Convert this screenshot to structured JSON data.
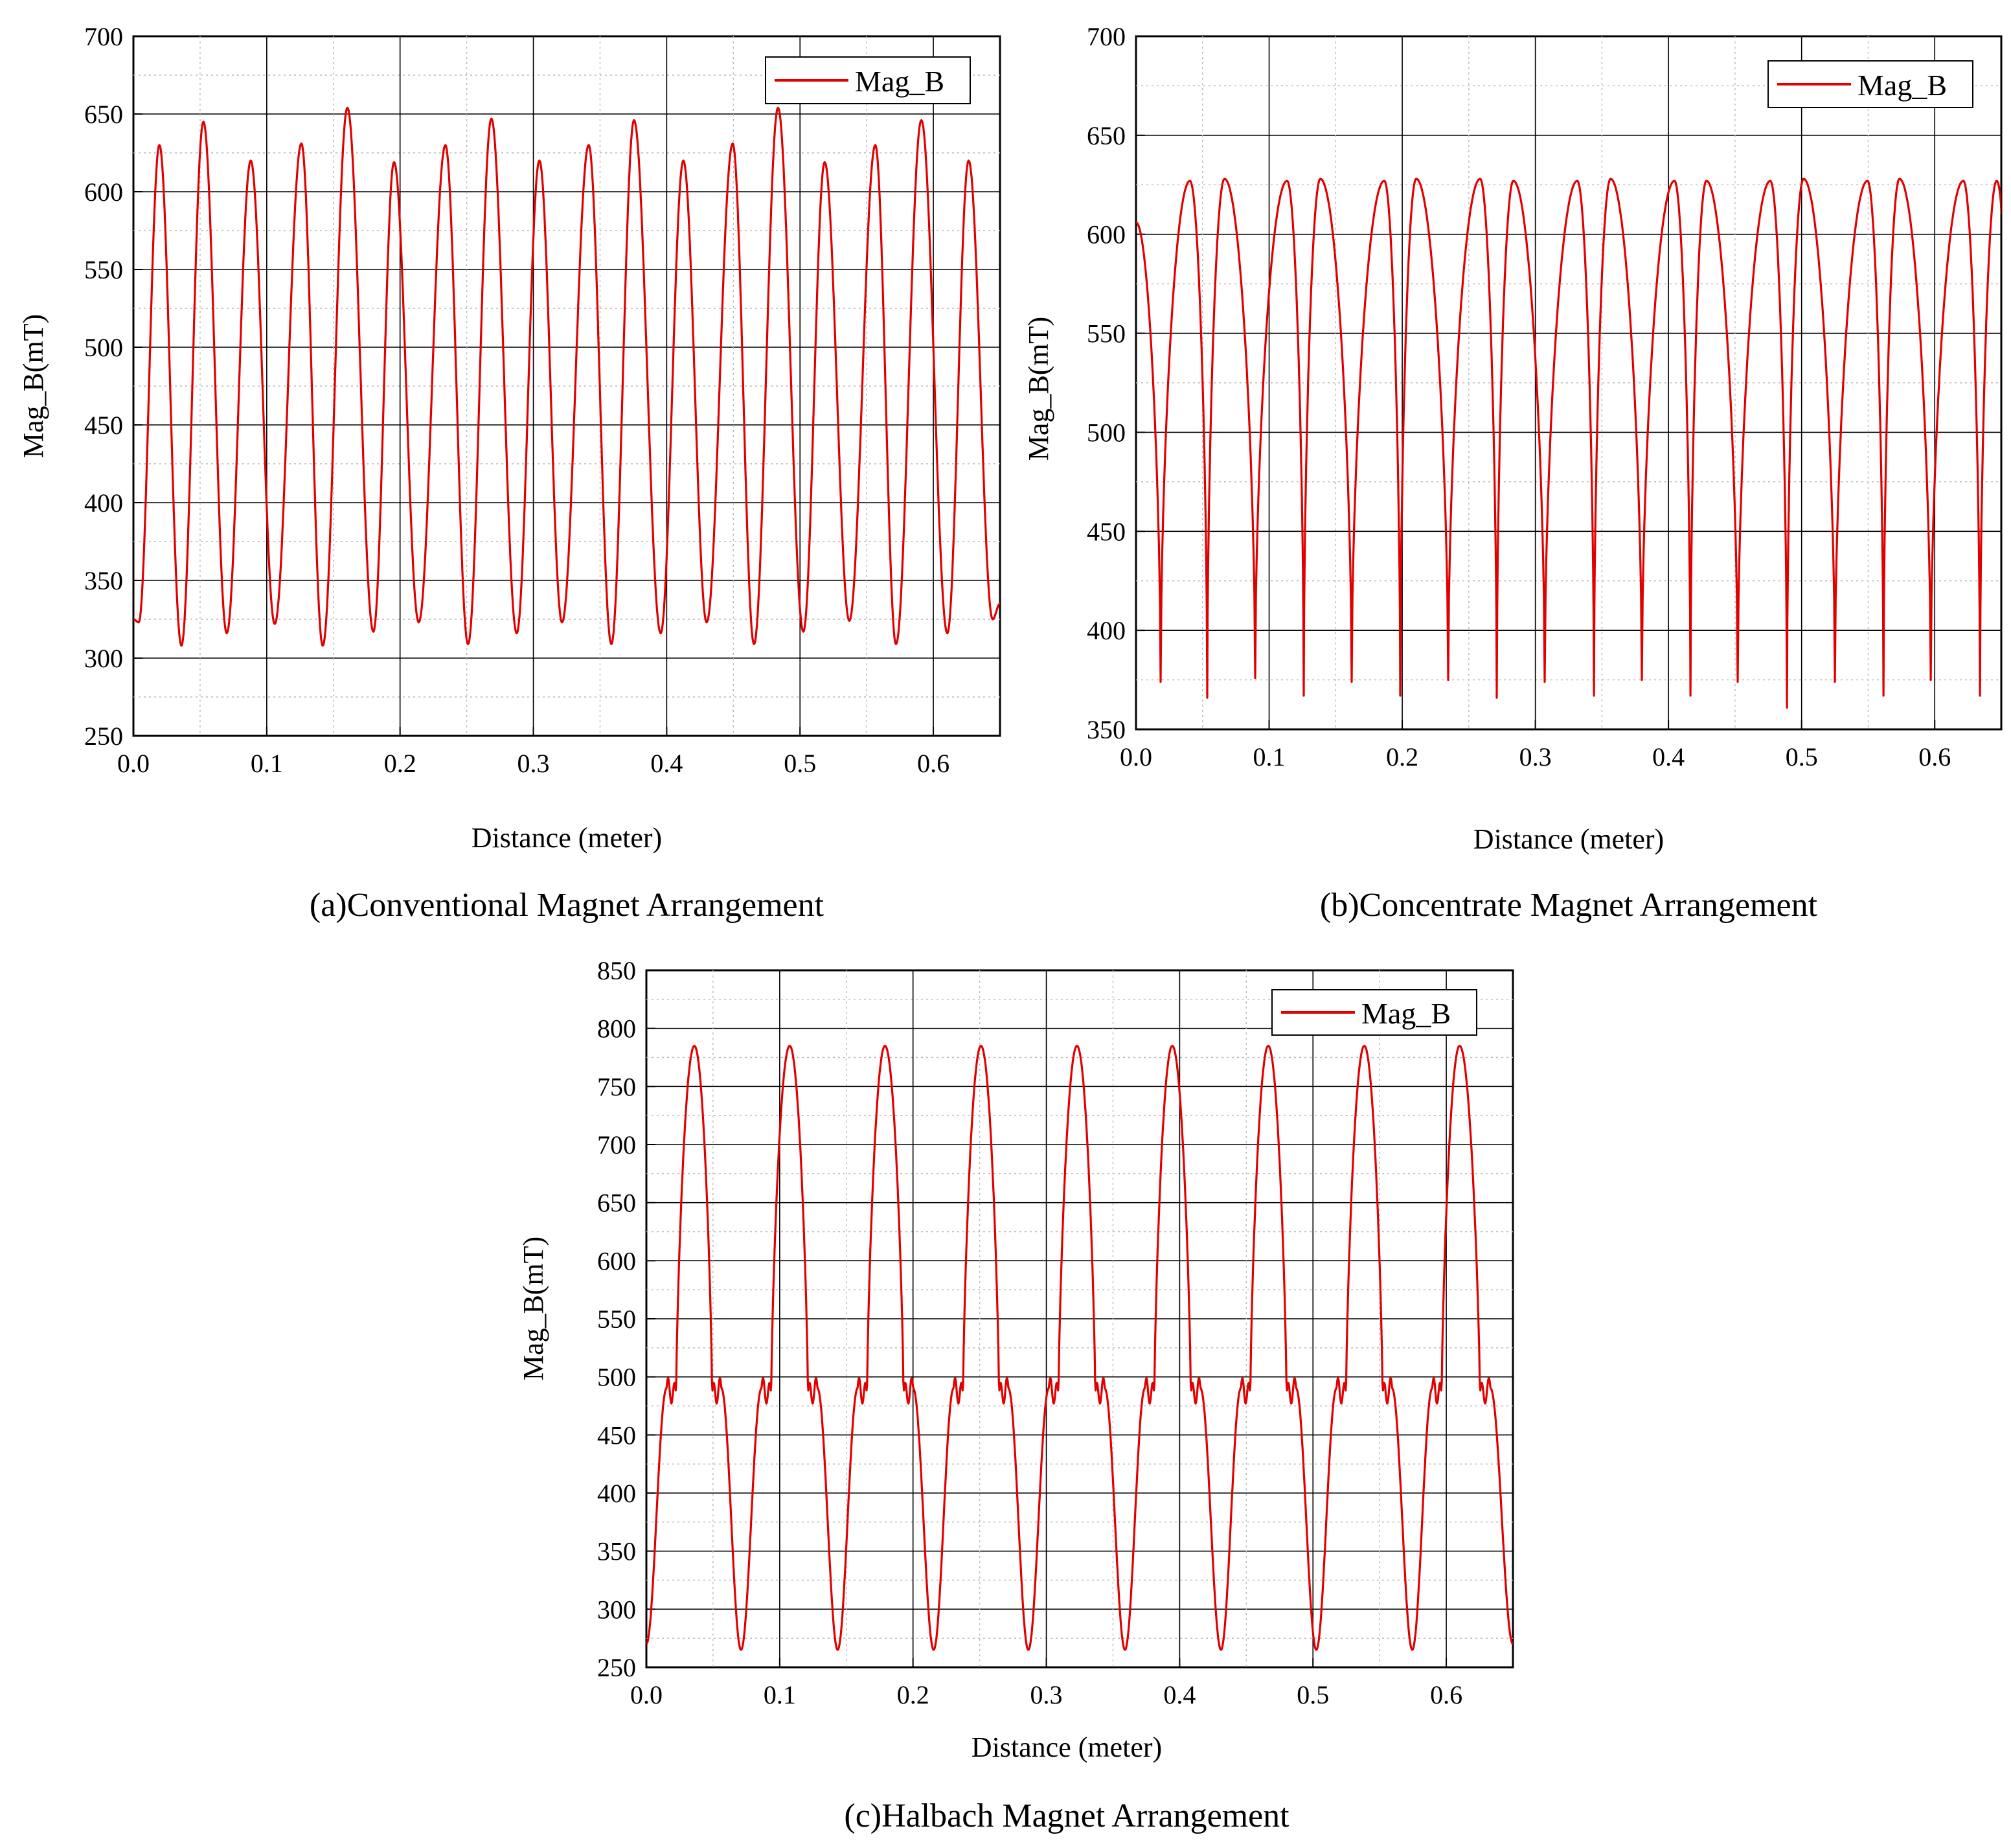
{
  "chart_data": [
    {
      "id": "a",
      "type": "line",
      "caption": "(a)Conventional Magnet Arrangement",
      "xlabel": "Distance (meter)",
      "ylabel": "Mag_B(mT)",
      "xlim": [
        0,
        0.65
      ],
      "ylim": [
        250,
        700
      ],
      "xticks": [
        "0.0",
        "0.1",
        "0.2",
        "0.3",
        "0.4",
        "0.5",
        "0.6"
      ],
      "yticks": [
        "250",
        "300",
        "350",
        "400",
        "450",
        "500",
        "550",
        "600",
        "650",
        "700"
      ],
      "grid": true,
      "legend_position": "top-right",
      "series": [
        {
          "name": "Mag_B",
          "color": "#e00000",
          "x": [
            0.0,
            0.004,
            0.0195,
            0.036,
            0.0525,
            0.07,
            0.088,
            0.106,
            0.126,
            0.142,
            0.1605,
            0.18,
            0.1955,
            0.214,
            0.234,
            0.251,
            0.2685,
            0.2875,
            0.3045,
            0.3215,
            0.3415,
            0.3585,
            0.3755,
            0.3955,
            0.4125,
            0.43,
            0.4495,
            0.4655,
            0.4835,
            0.5025,
            0.5185,
            0.537,
            0.5565,
            0.572,
            0.591,
            0.6105,
            0.6265,
            0.6445,
            0.65
          ],
          "y": [
            325,
            323,
            630,
            308,
            645,
            316,
            620,
            322,
            631,
            308,
            654,
            317,
            619,
            323,
            630,
            309,
            647,
            316,
            620,
            323,
            630,
            309,
            646,
            316,
            620,
            323,
            631,
            309,
            654,
            317,
            619,
            324,
            630,
            309,
            646,
            316,
            620,
            325,
            335
          ],
          "shape": "sharp"
        }
      ]
    },
    {
      "id": "b",
      "type": "line",
      "caption": "(b)Concentrate Magnet Arrangement",
      "xlabel": "Distance (meter)",
      "ylabel": "Mag_B(mT)",
      "xlim": [
        0,
        0.65
      ],
      "ylim": [
        350,
        700
      ],
      "xticks": [
        "0.0",
        "0.1",
        "0.2",
        "0.3",
        "0.4",
        "0.5",
        "0.6"
      ],
      "yticks": [
        "350",
        "400",
        "450",
        "500",
        "550",
        "600",
        "650",
        "700"
      ],
      "grid": true,
      "legend_position": "top-right",
      "series": [
        {
          "name": "Mag_B",
          "color": "#e00000",
          "x": [
            0.0,
            0.0185,
            0.0405,
            0.0535,
            0.0665,
            0.0895,
            0.1135,
            0.126,
            0.1385,
            0.162,
            0.1865,
            0.1985,
            0.2105,
            0.2345,
            0.2585,
            0.271,
            0.2835,
            0.307,
            0.3315,
            0.344,
            0.3565,
            0.38,
            0.4045,
            0.4165,
            0.4285,
            0.452,
            0.4765,
            0.489,
            0.5015,
            0.525,
            0.5495,
            0.5615,
            0.5735,
            0.597,
            0.6215,
            0.634,
            0.6465,
            0.65
          ],
          "y": [
            606,
            374,
            627,
            366,
            628,
            376,
            627,
            367,
            628,
            374,
            627,
            367,
            628,
            375,
            628,
            366,
            627,
            374,
            627,
            367,
            628,
            375,
            627,
            367,
            627,
            374,
            627,
            361,
            628,
            374,
            627,
            367,
            628,
            375,
            627,
            367,
            627,
            610
          ],
          "shape": "cusp"
        }
      ]
    },
    {
      "id": "c",
      "type": "line",
      "caption": "(c)Halbach Magnet Arrangement",
      "xlabel": "Distance (meter)",
      "ylabel": "Mag_B(mT)",
      "xlim": [
        0,
        0.65
      ],
      "ylim": [
        250,
        850
      ],
      "xticks": [
        "0.0",
        "0.1",
        "0.2",
        "0.3",
        "0.4",
        "0.5",
        "0.6"
      ],
      "yticks": [
        "250",
        "300",
        "350",
        "400",
        "450",
        "500",
        "550",
        "600",
        "650",
        "700",
        "750",
        "800",
        "850"
      ],
      "grid": true,
      "legend_position": "top-right",
      "series": [
        {
          "name": "Mag_B",
          "color": "#e00000",
          "x": [
            0.0,
            0.036,
            0.071,
            0.1075,
            0.1435,
            0.179,
            0.2155,
            0.251,
            0.2865,
            0.323,
            0.359,
            0.3945,
            0.431,
            0.4665,
            0.5025,
            0.5385,
            0.5745,
            0.61,
            0.65
          ],
          "y": [
            270,
            785,
            265,
            785,
            265,
            785,
            265,
            785,
            265,
            785,
            265,
            785,
            265,
            785,
            265,
            785,
            265,
            785,
            270
          ],
          "shape": "halbach"
        }
      ]
    }
  ]
}
